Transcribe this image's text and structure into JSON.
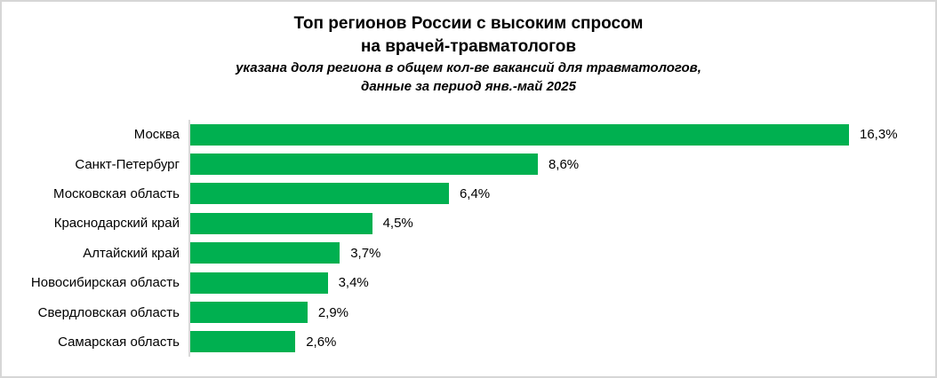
{
  "frame": {
    "background": "#ffffff",
    "border_color": "#d6d6d6"
  },
  "header": {
    "title_line1": "Топ регионов России с высоким спросом",
    "title_line2": "на врачей-травматологов",
    "subtitle_line1": "указана доля региона в общем кол-ве вакансий для травматологов,",
    "subtitle_line2": "данные за период янв.-май 2025"
  },
  "chart_data": {
    "type": "bar",
    "orientation": "horizontal",
    "title": "Топ регионов России с высоким спросом на врачей-травматологов",
    "subtitle": "указана доля региона в общем кол-ве вакансий для травматологов, данные за период янв.-май 2025",
    "categories": [
      "Москва",
      "Санкт-Петербург",
      "Московская область",
      "Краснодарский край",
      "Алтайский край",
      "Новосибирская область",
      "Свердловская область",
      "Самарская область"
    ],
    "values": [
      16.3,
      8.6,
      6.4,
      4.5,
      3.7,
      3.4,
      2.9,
      2.6
    ],
    "value_labels": [
      "16,3%",
      "8,6%",
      "6,4%",
      "4,5%",
      "3,7%",
      "3,4%",
      "2,9%",
      "2,6%"
    ],
    "unit": "%",
    "xlim": [
      0,
      18
    ],
    "grid": false,
    "legend": false,
    "bar_color": "#00B050",
    "axis_line_color": "#d9d9d9",
    "text_color": "#000000"
  }
}
